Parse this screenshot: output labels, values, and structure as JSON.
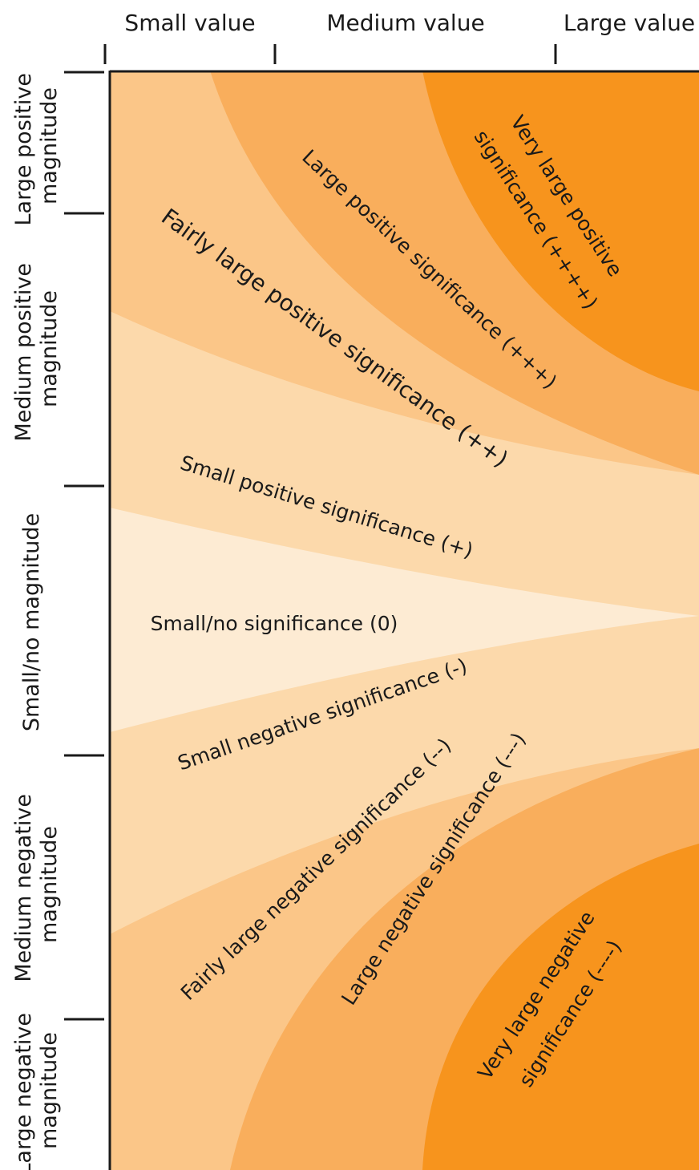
{
  "columns": {
    "small": "Small value",
    "medium": "Medium value",
    "large": "Large value"
  },
  "rows": {
    "large_positive": [
      "Large positive",
      "magnitude"
    ],
    "medium_positive": [
      "Medium positive",
      "magnitude"
    ],
    "small_no": [
      "Small/no magnitude"
    ],
    "medium_negative": [
      "Medium negative",
      "magnitude"
    ],
    "large_negative": [
      "Large negative",
      "magnitude"
    ]
  },
  "bands": {
    "very_large_positive": [
      "Very large positive",
      "significance (++++)"
    ],
    "large_positive": "Large positive significance (+++)",
    "fairly_large_positive": "Fairly large positive significance (++)",
    "small_positive": "Small positive significance (+)",
    "none": "Small/no significance (0)",
    "small_negative": "Small negative significance (-)",
    "fairly_large_negative": "Fairly large negative significance (--)",
    "large_negative": "Large negative significance (---)",
    "very_large_negative": [
      "Very large negative",
      "significance (----)"
    ]
  },
  "colors": {
    "band_0": "#fdebd3",
    "band_1": "#fcd9ab",
    "band_2": "#fbc688",
    "band_3": "#f9ae5c",
    "band_4": "#f7941d",
    "axis": "#1a1a1a"
  }
}
